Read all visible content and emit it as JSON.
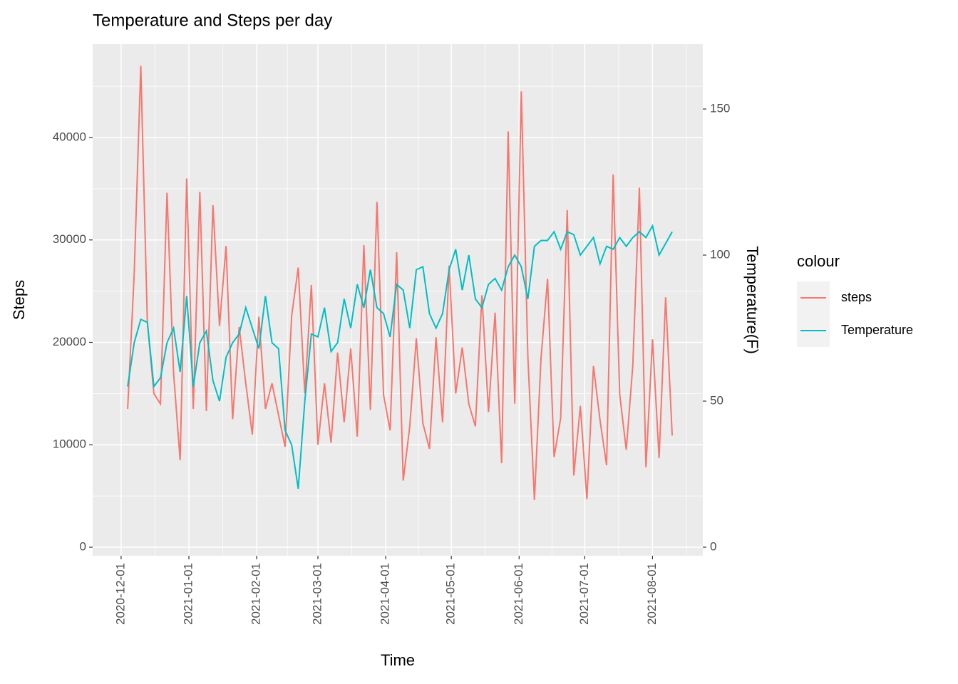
{
  "chart_data": {
    "type": "line",
    "title": "Temperature and Steps per day",
    "x_label": "Time",
    "y_label": "Steps",
    "y2_label": "Temperature(F)",
    "legend_title": "colour",
    "legend_position": "right",
    "grid": true,
    "x": [
      "2020-12-04",
      "2020-12-07",
      "2020-12-10",
      "2020-12-13",
      "2020-12-16",
      "2020-12-19",
      "2020-12-22",
      "2020-12-25",
      "2020-12-28",
      "2020-12-31",
      "2021-01-03",
      "2021-01-06",
      "2021-01-09",
      "2021-01-12",
      "2021-01-15",
      "2021-01-18",
      "2021-01-21",
      "2021-01-24",
      "2021-01-27",
      "2021-01-30",
      "2021-02-02",
      "2021-02-05",
      "2021-02-08",
      "2021-02-11",
      "2021-02-14",
      "2021-02-17",
      "2021-02-20",
      "2021-02-23",
      "2021-02-26",
      "2021-03-01",
      "2021-03-04",
      "2021-03-07",
      "2021-03-10",
      "2021-03-13",
      "2021-03-16",
      "2021-03-19",
      "2021-03-22",
      "2021-03-25",
      "2021-03-28",
      "2021-03-31",
      "2021-04-03",
      "2021-04-06",
      "2021-04-09",
      "2021-04-12",
      "2021-04-15",
      "2021-04-18",
      "2021-04-21",
      "2021-04-24",
      "2021-04-27",
      "2021-04-30",
      "2021-05-03",
      "2021-05-06",
      "2021-05-09",
      "2021-05-12",
      "2021-05-15",
      "2021-05-18",
      "2021-05-21",
      "2021-05-24",
      "2021-05-27",
      "2021-05-30",
      "2021-06-02",
      "2021-06-05",
      "2021-06-08",
      "2021-06-11",
      "2021-06-14",
      "2021-06-17",
      "2021-06-20",
      "2021-06-23",
      "2021-06-26",
      "2021-06-29",
      "2021-07-02",
      "2021-07-05",
      "2021-07-08",
      "2021-07-11",
      "2021-07-14",
      "2021-07-17",
      "2021-07-20",
      "2021-07-23",
      "2021-07-26",
      "2021-07-29",
      "2021-08-01",
      "2021-08-04",
      "2021-08-07",
      "2021-08-10"
    ],
    "series": [
      {
        "name": "steps",
        "color": "#F8766D",
        "values": [
          13500,
          26700,
          47000,
          22000,
          15000,
          14000,
          34600,
          17000,
          8500,
          36000,
          13500,
          34700,
          13300,
          33400,
          21600,
          29400,
          12500,
          21500,
          16000,
          11000,
          22500,
          13500,
          16000,
          12900,
          9800,
          22600,
          27300,
          15000,
          25600,
          10000,
          16000,
          10200,
          19000,
          12200,
          19400,
          10800,
          29500,
          13400,
          33700,
          14900,
          11400,
          28800,
          6500,
          11800,
          20400,
          12100,
          9600,
          20500,
          12200,
          27500,
          15000,
          19500,
          14000,
          11800,
          24600,
          13200,
          22900,
          8200,
          40600,
          14000,
          44500,
          18600,
          4600,
          18400,
          26200,
          8800,
          12600,
          32900,
          7000,
          13800,
          4700,
          17700,
          12400,
          8000,
          36400,
          14900,
          9500,
          17800,
          35100,
          7800,
          20300,
          8700,
          24400,
          10900
        ]
      },
      {
        "name": "Temperature",
        "color": "#00BFC4",
        "axis": "y2",
        "values": [
          55,
          70,
          78,
          77,
          55,
          58,
          70,
          75,
          60,
          86,
          55,
          70,
          74,
          57,
          50,
          65,
          70,
          73,
          82,
          75,
          68,
          86,
          70,
          68,
          40,
          35,
          20,
          50,
          73,
          72,
          82,
          67,
          70,
          85,
          75,
          90,
          82,
          95,
          82,
          80,
          72,
          90,
          88,
          75,
          95,
          96,
          80,
          75,
          80,
          95,
          102,
          88,
          100,
          85,
          82,
          90,
          92,
          88,
          96,
          100,
          96,
          85,
          103,
          105,
          105,
          108,
          102,
          108,
          107,
          100,
          103,
          106,
          97,
          103,
          102,
          106,
          103,
          106,
          108,
          106,
          110,
          100,
          104,
          108
        ]
      }
    ],
    "xlim": [
      "2020-11-18",
      "2021-08-24"
    ],
    "xticks": [
      "2020-12-01",
      "2021-01-01",
      "2021-02-01",
      "2021-03-01",
      "2021-04-01",
      "2021-05-01",
      "2021-06-01",
      "2021-07-01",
      "2021-08-01"
    ],
    "ylim": [
      -835,
      49113
    ],
    "yticks": [
      0,
      10000,
      20000,
      30000,
      40000
    ],
    "y2lim": [
      -2.93,
      172.2
    ],
    "y2ticks": [
      0,
      50,
      100,
      150
    ]
  }
}
